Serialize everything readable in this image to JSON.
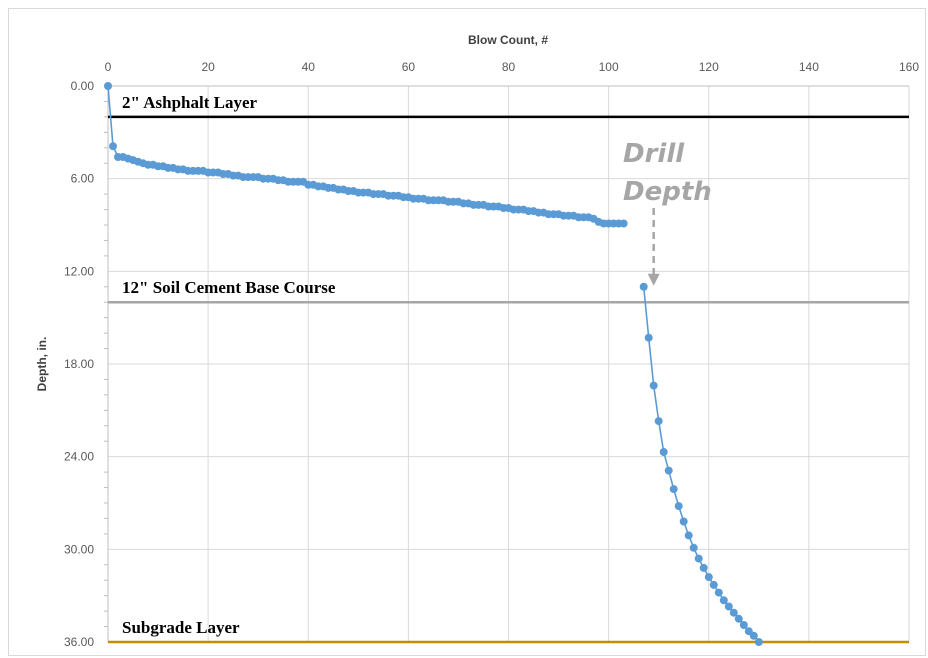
{
  "chart_data": {
    "type": "scatter",
    "xlabel": "Blow Count, #",
    "ylabel": "Depth, in.",
    "xlim": [
      0,
      160
    ],
    "ylim": [
      0,
      36
    ],
    "y_inverted": true,
    "x_axis_position": "top",
    "x_ticks": [
      0,
      20,
      40,
      60,
      80,
      100,
      120,
      140,
      160
    ],
    "x_tick_labels": [
      "0",
      "20",
      "40",
      "60",
      "80",
      "100",
      "120",
      "140",
      "160"
    ],
    "y_ticks": [
      0,
      6,
      12,
      18,
      24,
      30,
      36
    ],
    "y_tick_labels": [
      "0.00",
      "6.00",
      "12.00",
      "18.00",
      "24.00",
      "30.00",
      "36.00"
    ],
    "grid": true,
    "series": [
      {
        "color": "#5b9bd5",
        "marker": "circle",
        "line": true,
        "segments": [
          {
            "x": [
              0,
              1,
              2,
              3,
              4,
              5,
              6,
              7,
              8,
              9,
              10,
              11,
              12,
              13,
              14,
              15,
              16,
              17,
              18,
              19,
              20,
              21,
              22,
              23,
              24,
              25,
              26,
              27,
              28,
              29,
              30,
              31,
              32,
              33,
              34,
              35,
              36,
              37,
              38,
              39,
              40,
              41,
              42,
              43,
              44,
              45,
              46,
              47,
              48,
              49,
              50,
              51,
              52,
              53,
              54,
              55,
              56,
              57,
              58,
              59,
              60,
              61,
              62,
              63,
              64,
              65,
              66,
              67,
              68,
              69,
              70,
              71,
              72,
              73,
              74,
              75,
              76,
              77,
              78,
              79,
              80,
              81,
              82,
              83,
              84,
              85,
              86,
              87,
              88,
              89,
              90,
              91,
              92,
              93,
              94,
              95,
              96,
              97,
              98,
              99,
              100,
              101,
              102,
              103
            ],
            "y": [
              0.0,
              3.9,
              4.6,
              4.6,
              4.7,
              4.8,
              4.9,
              5.0,
              5.1,
              5.1,
              5.2,
              5.2,
              5.3,
              5.3,
              5.4,
              5.4,
              5.5,
              5.5,
              5.5,
              5.5,
              5.6,
              5.6,
              5.6,
              5.7,
              5.7,
              5.8,
              5.8,
              5.9,
              5.9,
              5.9,
              5.9,
              6.0,
              6.0,
              6.0,
              6.1,
              6.1,
              6.2,
              6.2,
              6.2,
              6.2,
              6.4,
              6.4,
              6.5,
              6.5,
              6.6,
              6.6,
              6.7,
              6.7,
              6.8,
              6.8,
              6.9,
              6.9,
              6.9,
              7.0,
              7.0,
              7.0,
              7.1,
              7.1,
              7.1,
              7.2,
              7.2,
              7.3,
              7.3,
              7.3,
              7.4,
              7.4,
              7.4,
              7.4,
              7.5,
              7.5,
              7.5,
              7.6,
              7.6,
              7.7,
              7.7,
              7.7,
              7.8,
              7.8,
              7.8,
              7.9,
              7.9,
              8.0,
              8.0,
              8.0,
              8.1,
              8.1,
              8.2,
              8.2,
              8.3,
              8.3,
              8.3,
              8.4,
              8.4,
              8.4,
              8.5,
              8.5,
              8.5,
              8.6,
              8.8,
              8.9,
              8.9,
              8.9,
              8.9,
              8.9
            ]
          },
          {
            "x": [
              107,
              108,
              109,
              110,
              111,
              112,
              113,
              114,
              115,
              116,
              117,
              118,
              119,
              120,
              121,
              122,
              123,
              124,
              125,
              126,
              127,
              128,
              129,
              130
            ],
            "y": [
              13.0,
              16.3,
              19.4,
              21.7,
              23.7,
              24.9,
              26.1,
              27.2,
              28.2,
              29.1,
              29.9,
              30.6,
              31.2,
              31.8,
              32.3,
              32.8,
              33.3,
              33.7,
              34.1,
              34.5,
              34.9,
              35.3,
              35.6,
              36.0
            ]
          }
        ]
      }
    ],
    "layers": [
      {
        "label": "2\" Ashphalt Layer",
        "depth": 2.0,
        "color": "#000000"
      },
      {
        "label": "12\" Soil Cement Base Course",
        "depth": 14.0,
        "color": "#a6a6a6"
      },
      {
        "label": "Subgrade Layer",
        "depth": 36.0,
        "color": "#bf8f00"
      }
    ],
    "annotation": {
      "lines": [
        "Drill",
        "Depth"
      ],
      "color": "#a6a6a6",
      "arrow_x": 109,
      "arrow_y_from": 7.9,
      "arrow_y_to": 12.8
    }
  }
}
